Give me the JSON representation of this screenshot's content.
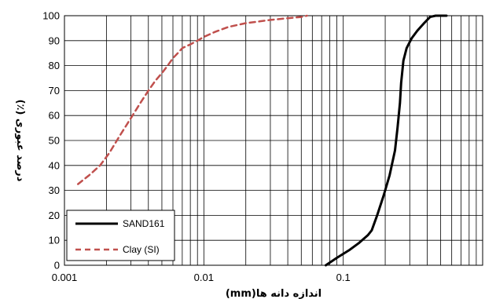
{
  "chart_data": {
    "type": "line",
    "xlabel": "اندازه دانه ها(mm)",
    "ylabel": "درصد عبوری (٪)",
    "x_scale": "log",
    "xlim": [
      0.001,
      1
    ],
    "ylim": [
      0,
      100
    ],
    "x_ticks": [
      0.001,
      0.01,
      0.1
    ],
    "x_tick_labels": [
      "0.001",
      "0.01",
      "0.1"
    ],
    "y_ticks": [
      0,
      10,
      20,
      30,
      40,
      50,
      60,
      70,
      80,
      90,
      100
    ],
    "y_tick_labels": [
      "0",
      "10",
      "20",
      "30",
      "40",
      "50",
      "60",
      "70",
      "80",
      "90",
      "100"
    ],
    "grid": true,
    "legend_position": "bottom-left",
    "series": [
      {
        "name": "SAND161",
        "color": "#000000",
        "dash": "solid",
        "x": [
          0.075,
          0.09,
          0.11,
          0.13,
          0.15,
          0.16,
          0.175,
          0.195,
          0.215,
          0.235,
          0.245,
          0.255,
          0.26,
          0.27,
          0.285,
          0.31,
          0.34,
          0.38,
          0.42,
          0.46,
          0.55
        ],
        "y": [
          0,
          3,
          6,
          9,
          12,
          14,
          20,
          28,
          36,
          46,
          55,
          65,
          73,
          82,
          87,
          91,
          94,
          97,
          99.5,
          100,
          100
        ]
      },
      {
        "name": "Clay (SI)",
        "color": "#c0504d",
        "dash": "dashed",
        "x": [
          0.00125,
          0.0015,
          0.0018,
          0.0021,
          0.0025,
          0.003,
          0.0035,
          0.004,
          0.0045,
          0.005,
          0.0055,
          0.006,
          0.0065,
          0.007,
          0.008,
          0.009,
          0.01,
          0.012,
          0.015,
          0.02,
          0.025,
          0.03,
          0.04,
          0.05,
          0.055
        ],
        "y": [
          32.5,
          36,
          40,
          45,
          52,
          59,
          65,
          70,
          74,
          77,
          80,
          83,
          85,
          87,
          88.5,
          90,
          91.5,
          93.5,
          95.5,
          97,
          97.7,
          98.3,
          99,
          99.5,
          100
        ]
      }
    ]
  }
}
